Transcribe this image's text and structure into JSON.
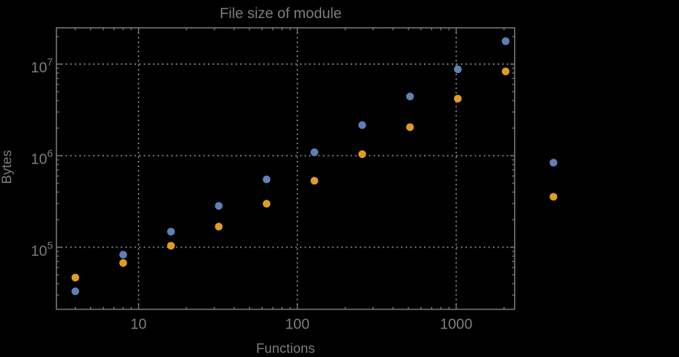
{
  "title": "File size of module",
  "colors": {
    "background": "#000000",
    "frame": "#6f6f6f",
    "gridline": "#8d8d8d",
    "text": "#7d7d7d",
    "series_blue": "#5E81B5",
    "series_orange": "#E19C24"
  },
  "chart_data": {
    "type": "scatter",
    "title": "File size of module",
    "xlabel": "Functions",
    "ylabel": "Bytes",
    "xscale": "log",
    "yscale": "log",
    "xlim": [
      3.04,
      2334
    ],
    "ylim": [
      21000,
      24900000
    ],
    "grid": "major-dotted",
    "legend": "none",
    "clipping": false,
    "x_major_ticks": [
      10,
      100,
      1000
    ],
    "x_major_labels": [
      "10",
      "100",
      "1000"
    ],
    "y_major_ticks": [
      100000,
      1000000,
      10000000
    ],
    "y_tick_base": "10",
    "y_major_exponents": [
      "5",
      "6",
      "7"
    ],
    "x": [
      4,
      8,
      16,
      32,
      64,
      128,
      256,
      512,
      1024,
      2048,
      4096
    ],
    "series": [
      {
        "name": "series-1-blue",
        "color": "#5E81B5",
        "values": [
          33000,
          83000,
          148000,
          283000,
          551000,
          1090000,
          2160000,
          4430000,
          8770000,
          17800000,
          840000
        ]
      },
      {
        "name": "series-2-orange",
        "color": "#E19C24",
        "values": [
          46700,
          67400,
          104000,
          168000,
          299000,
          532000,
          1040000,
          2050000,
          4200000,
          8320000,
          356000
        ]
      }
    ]
  }
}
